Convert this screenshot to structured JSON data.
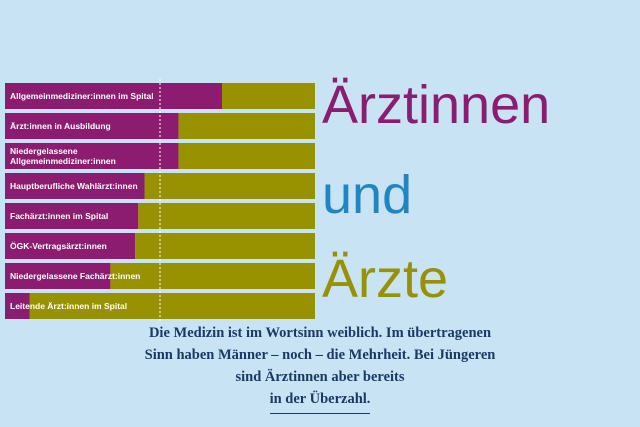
{
  "colors": {
    "background": "#c8e3f3",
    "women": "#8c1c70",
    "men": "#989100",
    "und": "#1f86c3",
    "caption": "#1a3a66"
  },
  "headline": {
    "word1": "Ärztinnen",
    "word2": "und",
    "word3": "Ärzte"
  },
  "caption": {
    "line1": "Die Medizin ist im Wortsinn weiblich. Im übertragenen",
    "line2": "Sinn haben Männer – noch – die Mehrheit. Bei Jüngeren",
    "line3": "sind Ärztinnen aber bereits",
    "line4": "in der Überzahl."
  },
  "chart_data": {
    "type": "bar",
    "orientation": "horizontal",
    "stacked": true,
    "xlim": [
      0,
      100
    ],
    "reference_line": 50,
    "categories": [
      [
        "Allgemeinmediziner:innen im Spital"
      ],
      [
        "Ärzt:innen in Ausbildung"
      ],
      [
        "Niedergelassene",
        "Allgemeinmediziner:innen"
      ],
      [
        "Hauptberufliche Wahlärzt:innen"
      ],
      [
        "Fachärzt:innen im Spital"
      ],
      [
        "ÖGK-Vertragsärzt:innen"
      ],
      [
        "Niedergelassene Fachärzt:innen"
      ],
      [
        "Leitende Ärzt:innen im Spital"
      ]
    ],
    "series": [
      {
        "values": [
          70,
          56,
          56,
          45,
          43,
          42,
          34,
          8
        ]
      },
      {
        "values": [
          30,
          44,
          44,
          55,
          57,
          58,
          66,
          92
        ]
      }
    ],
    "grid": false
  }
}
